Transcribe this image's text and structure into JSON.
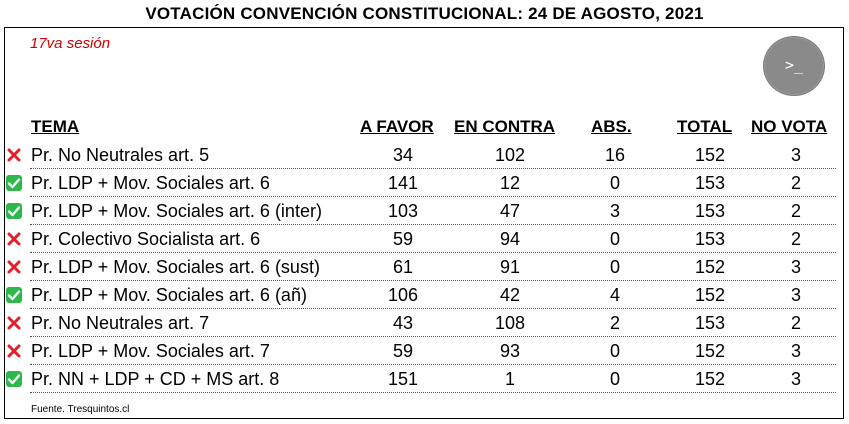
{
  "title": "VOTACIÓN CONVENCIÓN CONSTITUCIONAL: 24 DE AGOSTO, 2021",
  "session": "17va sesión",
  "terminal_icon_glyph": ">_",
  "headers": {
    "tema": "TEMA",
    "a_favor": "A FAVOR",
    "en_contra": "EN CONTRA",
    "abs": "ABS.",
    "total": "TOTAL",
    "no_vota": "NO VOTA"
  },
  "rows": [
    {
      "result": "rejected",
      "tema": "Pr. No Neutrales art. 5",
      "a_favor": "34",
      "en_contra": "102",
      "abs": "16",
      "total": "152",
      "no_vota": "3"
    },
    {
      "result": "approved",
      "tema": "Pr. LDP + Mov. Sociales art. 6",
      "a_favor": "141",
      "en_contra": "12",
      "abs": "0",
      "total": "153",
      "no_vota": "2"
    },
    {
      "result": "approved",
      "tema": "Pr. LDP + Mov. Sociales art. 6 (inter)",
      "a_favor": "103",
      "en_contra": "47",
      "abs": "3",
      "total": "153",
      "no_vota": "2"
    },
    {
      "result": "rejected",
      "tema": "Pr. Colectivo Socialista art. 6",
      "a_favor": "59",
      "en_contra": "94",
      "abs": "0",
      "total": "153",
      "no_vota": "2"
    },
    {
      "result": "rejected",
      "tema": "Pr. LDP + Mov. Sociales art. 6 (sust)",
      "a_favor": "61",
      "en_contra": "91",
      "abs": "0",
      "total": "152",
      "no_vota": "3"
    },
    {
      "result": "approved",
      "tema": "Pr. LDP + Mov. Sociales art. 6 (añ)",
      "a_favor": "106",
      "en_contra": "42",
      "abs": "4",
      "total": "152",
      "no_vota": "3"
    },
    {
      "result": "rejected",
      "tema": "Pr. No Neutrales art. 7",
      "a_favor": "43",
      "en_contra": "108",
      "abs": "2",
      "total": "153",
      "no_vota": "2"
    },
    {
      "result": "rejected",
      "tema": "Pr. LDP + Mov. Sociales art. 7",
      "a_favor": "59",
      "en_contra": "93",
      "abs": "0",
      "total": "152",
      "no_vota": "3"
    },
    {
      "result": "approved",
      "tema": "Pr. NN + LDP + CD + MS art. 8",
      "a_favor": "151",
      "en_contra": "1",
      "abs": "0",
      "total": "152",
      "no_vota": "3"
    }
  ],
  "colors": {
    "approved": "#2db84b",
    "rejected": "#e0202a",
    "session": "#d00000"
  },
  "source": "Fuente. Tresquintos.cl"
}
